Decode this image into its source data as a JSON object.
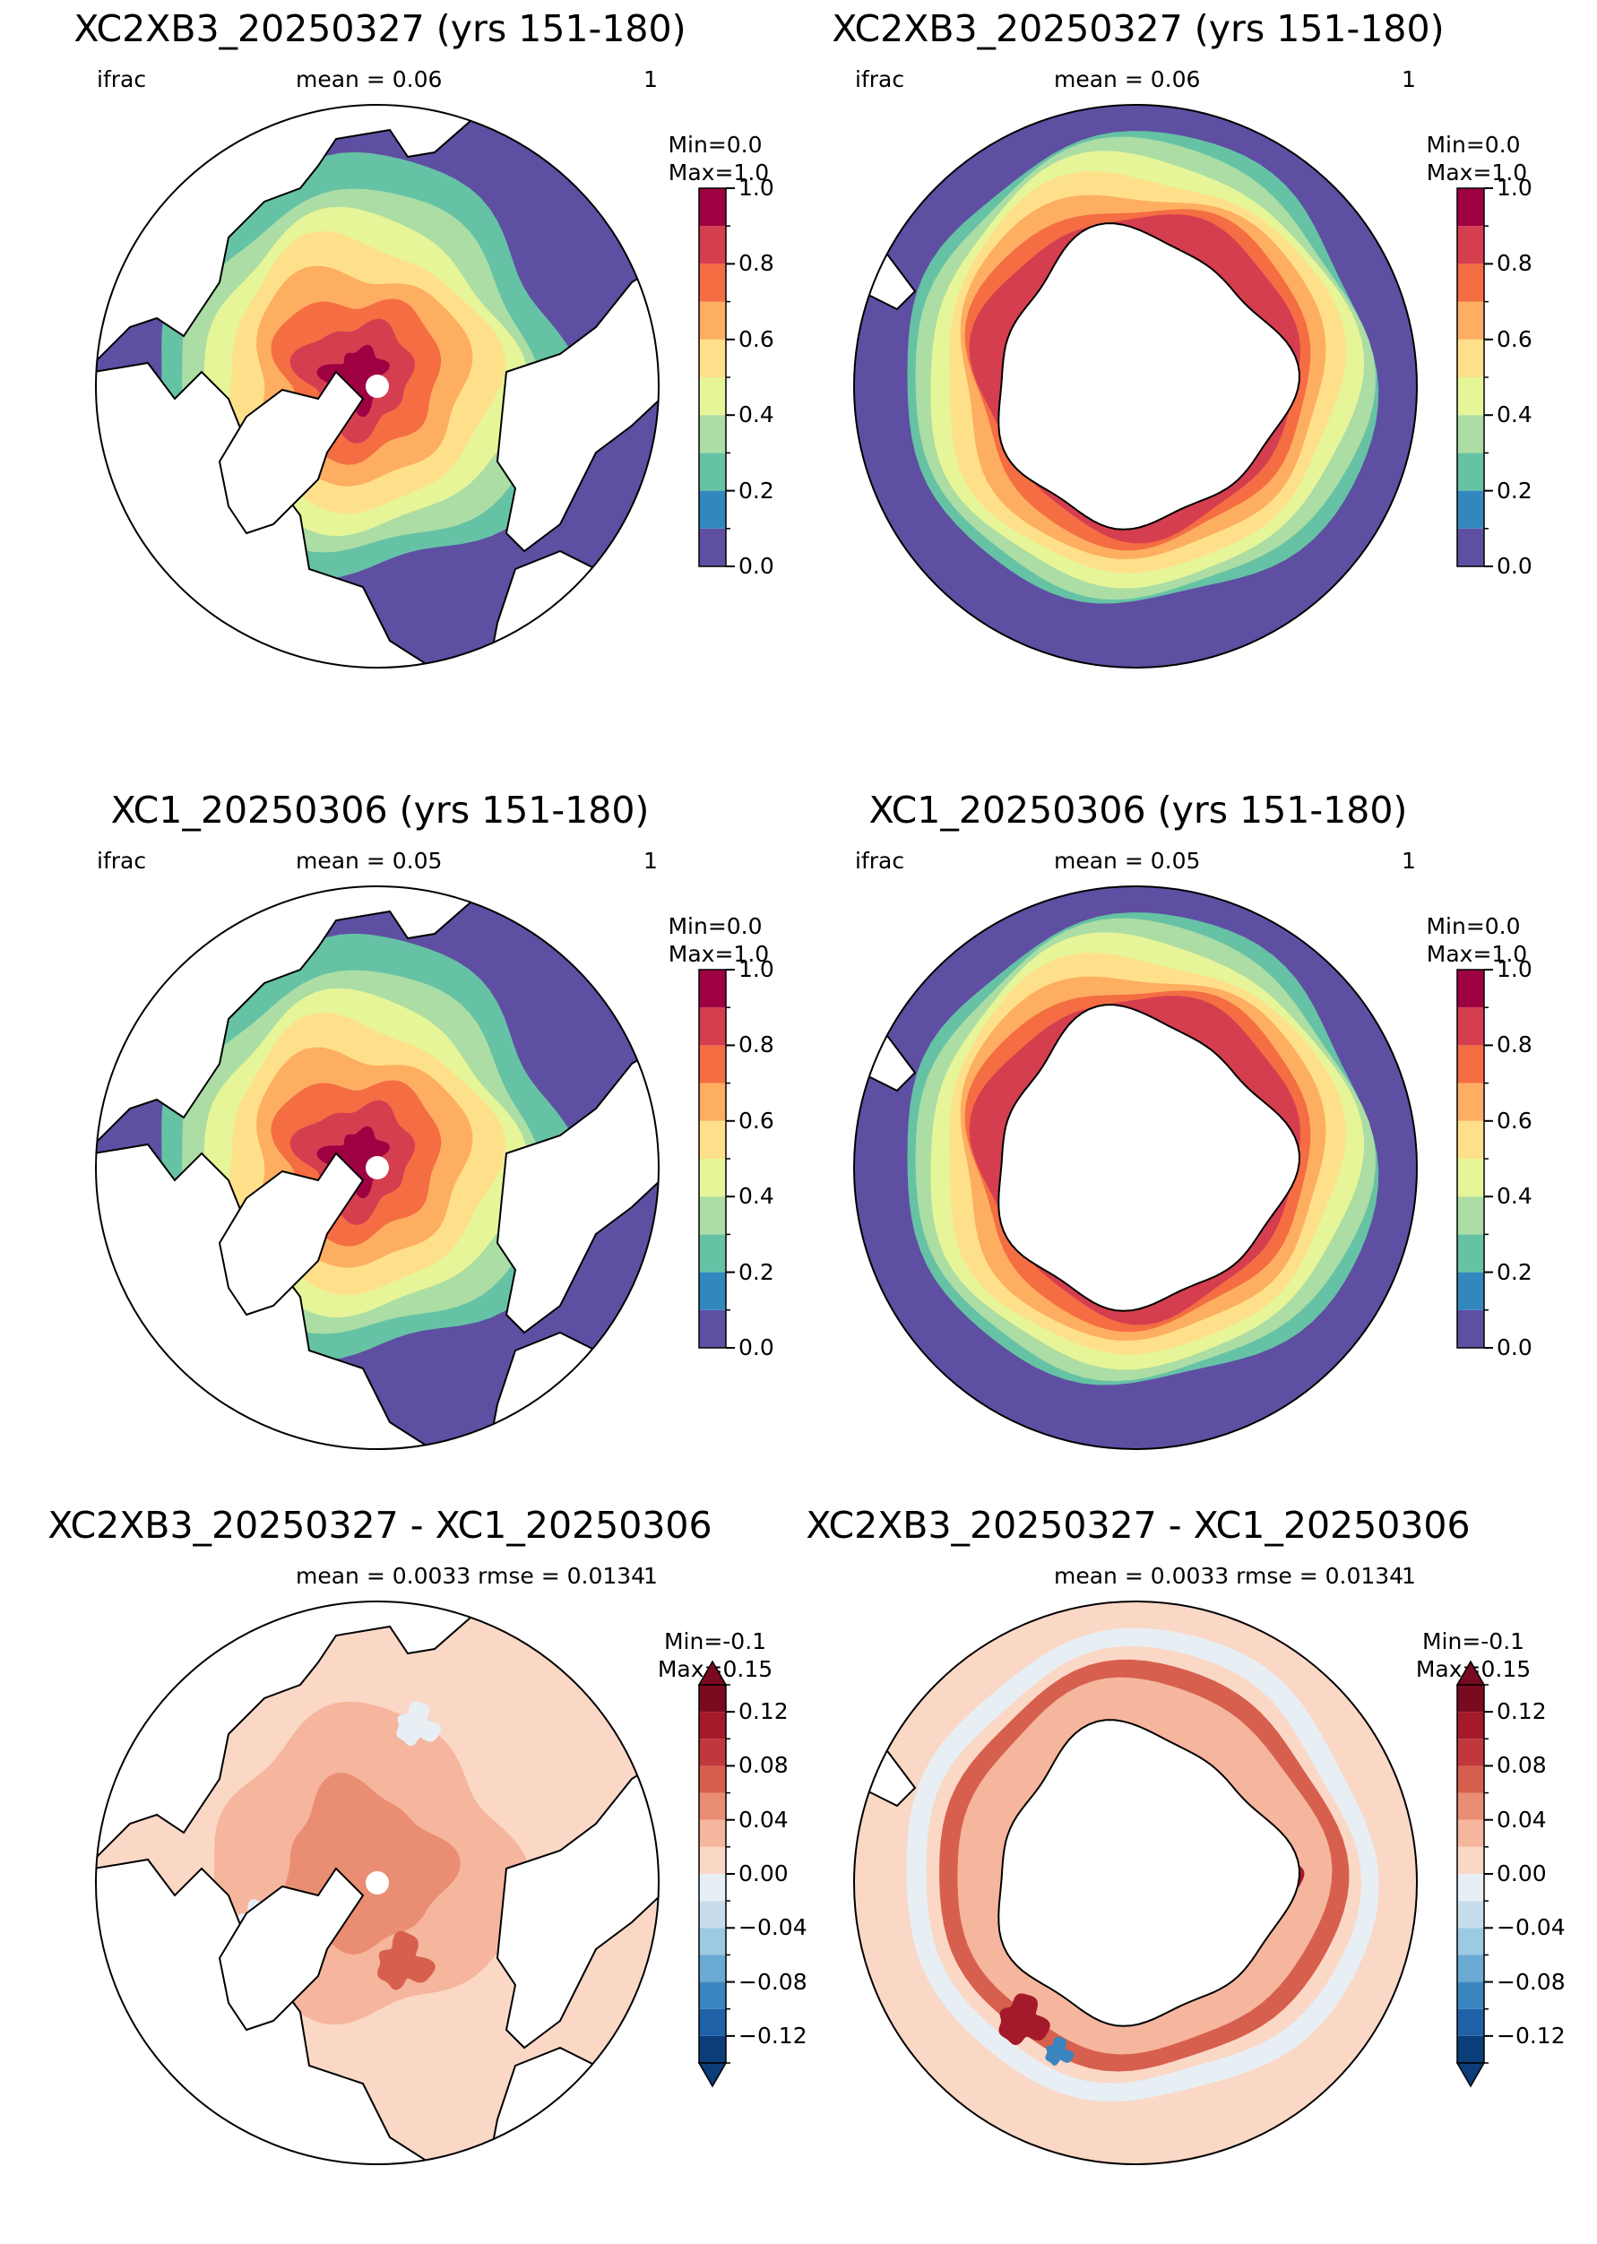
{
  "panels": [
    {
      "id": "arctic-1",
      "title": "XC2XB3_20250327 (yrs 151-180)",
      "left_text": "ifrac",
      "mid_text": "mean = 0.06",
      "right_text": "1",
      "minmax": "Min=0.0\n Max=1.0",
      "hemisphere": "north",
      "variant": "field",
      "colorbar": "ice"
    },
    {
      "id": "antarctic-1",
      "title": "XC2XB3_20250327 (yrs 151-180)",
      "left_text": "ifrac",
      "mid_text": "mean = 0.06",
      "right_text": "1",
      "minmax": "Min=0.0\n Max=1.0",
      "hemisphere": "south",
      "variant": "field",
      "colorbar": "ice"
    },
    {
      "id": "arctic-2",
      "title": "XC1_20250306 (yrs 151-180)",
      "left_text": "ifrac",
      "mid_text": "mean = 0.05",
      "right_text": "1",
      "minmax": "Min=0.0\n Max=1.0",
      "hemisphere": "north",
      "variant": "field",
      "colorbar": "ice"
    },
    {
      "id": "antarctic-2",
      "title": "XC1_20250306 (yrs 151-180)",
      "left_text": "ifrac",
      "mid_text": "mean = 0.05",
      "right_text": "1",
      "minmax": "Min=0.0\n Max=1.0",
      "hemisphere": "south",
      "variant": "field",
      "colorbar": "ice"
    },
    {
      "id": "arctic-diff",
      "title": "XC2XB3_20250327 - XC1_20250306",
      "left_text": "",
      "mid_text": "mean = 0.0033 rmse = 0.0134",
      "right_text": "1",
      "minmax": "Min=-0.1\nMax=0.15",
      "hemisphere": "north",
      "variant": "diff",
      "colorbar": "diff"
    },
    {
      "id": "antarctic-diff",
      "title": "XC2XB3_20250327 - XC1_20250306",
      "left_text": "",
      "mid_text": "mean = 0.0033 rmse = 0.0134",
      "right_text": "1",
      "minmax": "Min=-0.1\nMax=0.15",
      "hemisphere": "south",
      "variant": "diff",
      "colorbar": "diff"
    }
  ],
  "colorbars": {
    "ice": {
      "levels": [
        0.0,
        0.1,
        0.2,
        0.3,
        0.4,
        0.5,
        0.6,
        0.7,
        0.8,
        0.9,
        1.0
      ],
      "colors": [
        "#5e4fa2",
        "#3288bd",
        "#66c2a5",
        "#abdda4",
        "#e6f598",
        "#fee08b",
        "#fdae61",
        "#f46d43",
        "#d53e4f",
        "#9e0142"
      ],
      "tick_values": [
        0.0,
        0.2,
        0.4,
        0.6,
        0.8,
        1.0
      ],
      "tick_labels": [
        "0.0",
        "0.2",
        "0.4",
        "0.6",
        "0.8",
        "1.0"
      ],
      "extend": "neither"
    },
    "diff": {
      "levels": [
        -0.14,
        -0.12,
        -0.1,
        -0.08,
        -0.06,
        -0.04,
        -0.02,
        0.0,
        0.02,
        0.04,
        0.06,
        0.08,
        0.1,
        0.12,
        0.14
      ],
      "colors": [
        "#0b3d78",
        "#1f62a8",
        "#3a85c0",
        "#6aaad3",
        "#9ccae2",
        "#c7ddec",
        "#e7eff4",
        "#fbd7c6",
        "#f6b59d",
        "#ea8e73",
        "#d6604d",
        "#c0383c",
        "#a41a2b",
        "#7a0a20"
      ],
      "tick_values": [
        -0.12,
        -0.08,
        -0.04,
        0.0,
        0.04,
        0.08,
        0.12
      ],
      "tick_labels": [
        "−0.12",
        "−0.08",
        "−0.04",
        "0.00",
        "0.04",
        "0.08",
        "0.12"
      ],
      "extend": "both"
    }
  },
  "colors": {
    "land": "#ffffff",
    "open_ocean_ice": "#5e4fa2",
    "diff_background": "#fbd7c6",
    "coastline": "#000000"
  }
}
